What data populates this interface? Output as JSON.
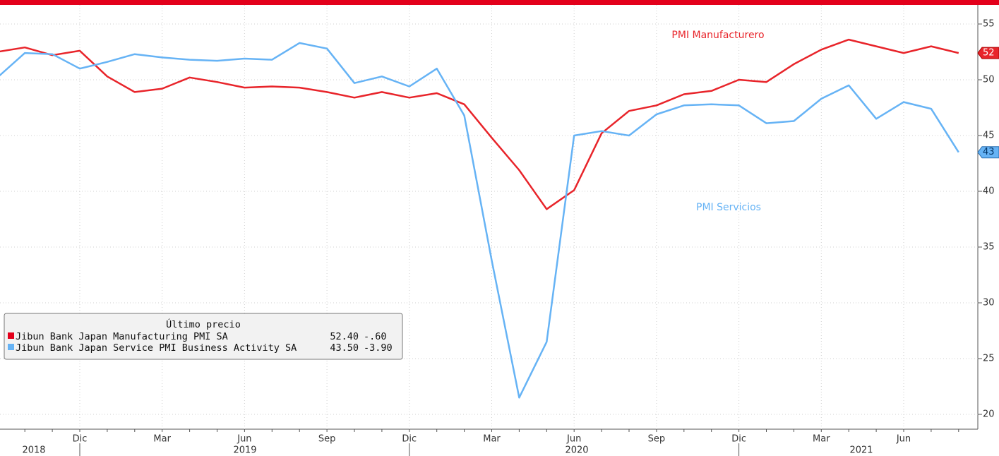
{
  "chart_data": {
    "type": "line",
    "categories": [
      null,
      null,
      null,
      "Dic",
      null,
      null,
      "Mar",
      null,
      null,
      "Jun",
      null,
      null,
      "Sep",
      null,
      null,
      "Dic",
      null,
      null,
      "Mar",
      null,
      null,
      "Jun",
      null,
      null,
      "Sep",
      null,
      null,
      "Dic",
      null,
      null,
      "Mar",
      null,
      null,
      "Jun",
      null,
      null
    ],
    "year_labels": [
      "2018",
      "2019",
      "2020",
      "2021"
    ],
    "series": [
      {
        "name": "Jibun Bank Japan Manufacturing PMI SA",
        "color": "#e8242a",
        "last_label": "52",
        "values": [
          52.5,
          52.9,
          52.2,
          52.6,
          50.3,
          48.9,
          49.2,
          50.2,
          49.8,
          49.3,
          49.4,
          49.3,
          48.9,
          48.4,
          48.9,
          48.4,
          48.8,
          47.8,
          44.8,
          41.9,
          38.4,
          40.1,
          45.2,
          47.2,
          47.7,
          48.7,
          49.0,
          50.0,
          49.8,
          51.4,
          52.7,
          53.6,
          53.0,
          52.4,
          53.0,
          52.4
        ]
      },
      {
        "name": "Jibun Bank Japan Service PMI Business Activity SA",
        "color": "#66b3f5",
        "last_label": "43",
        "values": [
          50.2,
          52.4,
          52.3,
          51.0,
          51.6,
          52.3,
          52.0,
          51.8,
          51.7,
          51.9,
          51.8,
          53.3,
          52.8,
          49.7,
          50.3,
          49.4,
          51.0,
          46.8,
          33.8,
          21.5,
          26.5,
          45.0,
          45.4,
          45.0,
          46.9,
          47.7,
          47.8,
          47.7,
          46.1,
          46.3,
          48.3,
          49.5,
          46.5,
          48.0,
          47.4,
          43.5
        ]
      }
    ],
    "ylim": [
      18.9,
      56.5
    ],
    "yticks": [
      20,
      25,
      30,
      35,
      40,
      45,
      50,
      55
    ],
    "grid": true,
    "annotations": [
      "PMI Manufacturero",
      "PMI Servicios"
    ],
    "legend": {
      "title": "Último precio",
      "last": [
        "52.40",
        "43.50"
      ],
      "change": [
        "-.60",
        "-3.90"
      ]
    }
  }
}
